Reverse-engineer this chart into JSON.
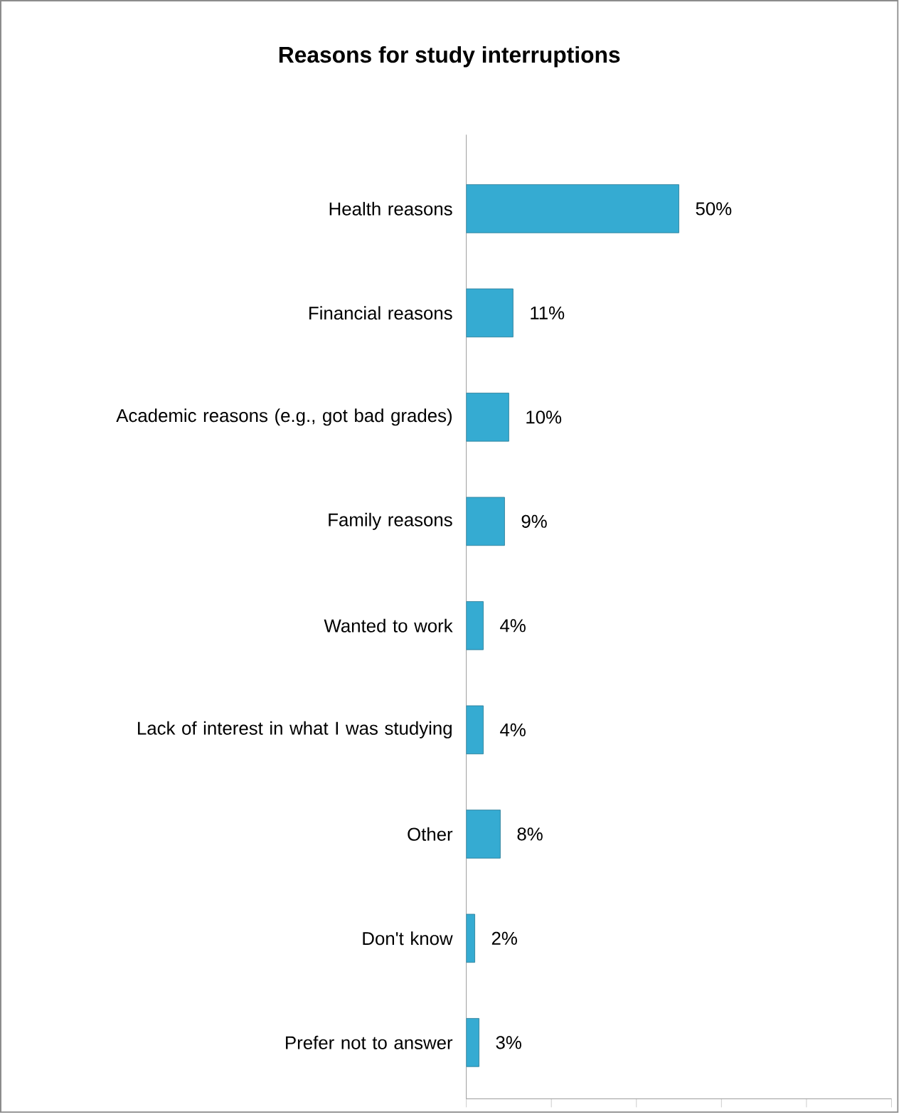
{
  "chart_data": {
    "type": "bar",
    "orientation": "horizontal",
    "title": "Reasons for study interruptions",
    "categories": [
      "Health reasons",
      "Financial reasons",
      "Academic reasons (e.g., got bad grades)",
      "Family reasons",
      "Wanted to work",
      "Lack of interest in what I was studying",
      "Other",
      "Don't know",
      "Prefer not to answer"
    ],
    "values": [
      50,
      11,
      10,
      9,
      4,
      4,
      8,
      2,
      3
    ],
    "value_labels": [
      "50%",
      "11%",
      "10%",
      "9%",
      "4%",
      "4%",
      "8%",
      "2%",
      "3%"
    ],
    "color": "#35abd2",
    "xlim": [
      0,
      100
    ],
    "xticks": [
      {
        "value": 0,
        "label": null
      },
      {
        "value": 20,
        "label": null
      },
      {
        "value": 40,
        "label": null
      },
      {
        "value": 60,
        "label": null
      },
      {
        "value": 80,
        "label": null
      },
      {
        "value": 100,
        "label": null
      }
    ],
    "tick_labels": "y"
  }
}
